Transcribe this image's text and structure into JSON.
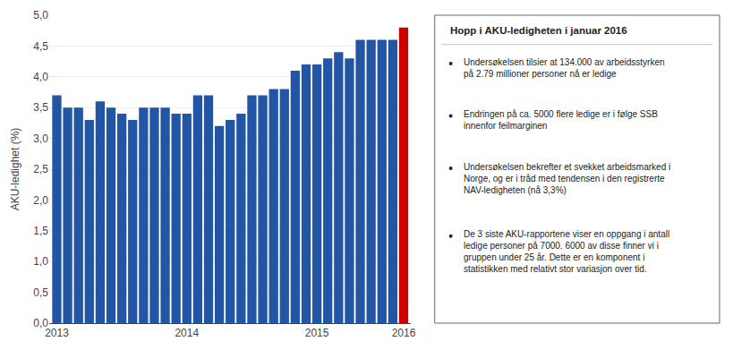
{
  "chart_data": {
    "type": "bar",
    "categories": [
      "2013",
      null,
      null,
      null,
      null,
      null,
      null,
      null,
      null,
      null,
      null,
      null,
      "2014",
      null,
      null,
      null,
      null,
      null,
      null,
      null,
      null,
      null,
      null,
      null,
      "2015",
      null,
      null,
      null,
      null,
      null,
      null,
      null,
      "2016"
    ],
    "values": [
      3.7,
      3.5,
      3.5,
      3.3,
      3.6,
      3.5,
      3.4,
      3.3,
      3.5,
      3.5,
      3.5,
      3.4,
      3.4,
      3.7,
      3.7,
      3.2,
      3.3,
      3.4,
      3.7,
      3.7,
      3.8,
      3.8,
      4.1,
      4.2,
      4.2,
      4.3,
      4.4,
      4.3,
      4.6,
      4.6,
      4.6,
      4.6,
      4.8
    ],
    "colors": [
      "#2255a4",
      "#2255a4",
      "#2255a4",
      "#2255a4",
      "#2255a4",
      "#2255a4",
      "#2255a4",
      "#2255a4",
      "#2255a4",
      "#2255a4",
      "#2255a4",
      "#2255a4",
      "#2255a4",
      "#2255a4",
      "#2255a4",
      "#2255a4",
      "#2255a4",
      "#2255a4",
      "#2255a4",
      "#2255a4",
      "#2255a4",
      "#2255a4",
      "#2255a4",
      "#2255a4",
      "#2255a4",
      "#2255a4",
      "#2255a4",
      "#2255a4",
      "#2255a4",
      "#2255a4",
      "#2255a4",
      "#2255a4",
      "#cc0000"
    ],
    "ylabel": "AKU-ledighet (%)",
    "ylim": [
      0.0,
      5.0
    ],
    "yticks": [
      {
        "value": 0.0,
        "label": "0,0"
      },
      {
        "value": 0.5,
        "label": "0,5"
      },
      {
        "value": 1.0,
        "label": "1,0"
      },
      {
        "value": 1.5,
        "label": "1,5"
      },
      {
        "value": 2.0,
        "label": "2,0"
      },
      {
        "value": 2.5,
        "label": "2,5"
      },
      {
        "value": 3.0,
        "label": "3,0"
      },
      {
        "value": 3.5,
        "label": "3,5"
      },
      {
        "value": 4.0,
        "label": "4,0"
      },
      {
        "value": 4.5,
        "label": "4,5"
      },
      {
        "value": 5.0,
        "label": "5,0"
      }
    ],
    "grid": true,
    "annotations": [
      "Hopp i AKU-ledigheten i januar 2016",
      "Undersøkelsen tilsier at 134.000 av arbeidsstyrken\npå 2.79 millioner personer nå er ledige",
      "Endringen på ca. 5000 flere ledige er i følge SSB\ninnenfor feilmarginen",
      "Undersøkelsen bekrefter et svekket arbeidsmarked i\nNorge, og er i tråd med tendensen i den registrerte\nNAV-ledigheten (nå 3,3%)",
      "De 3 siste AKU-rapportene viser en oppgang i antall\nledige personer på 7000. 6000 av disse finner vi i\ngruppen under 25 år. Dette er en komponent i\nstatistikken med relativt stor variasjon over tid."
    ]
  }
}
